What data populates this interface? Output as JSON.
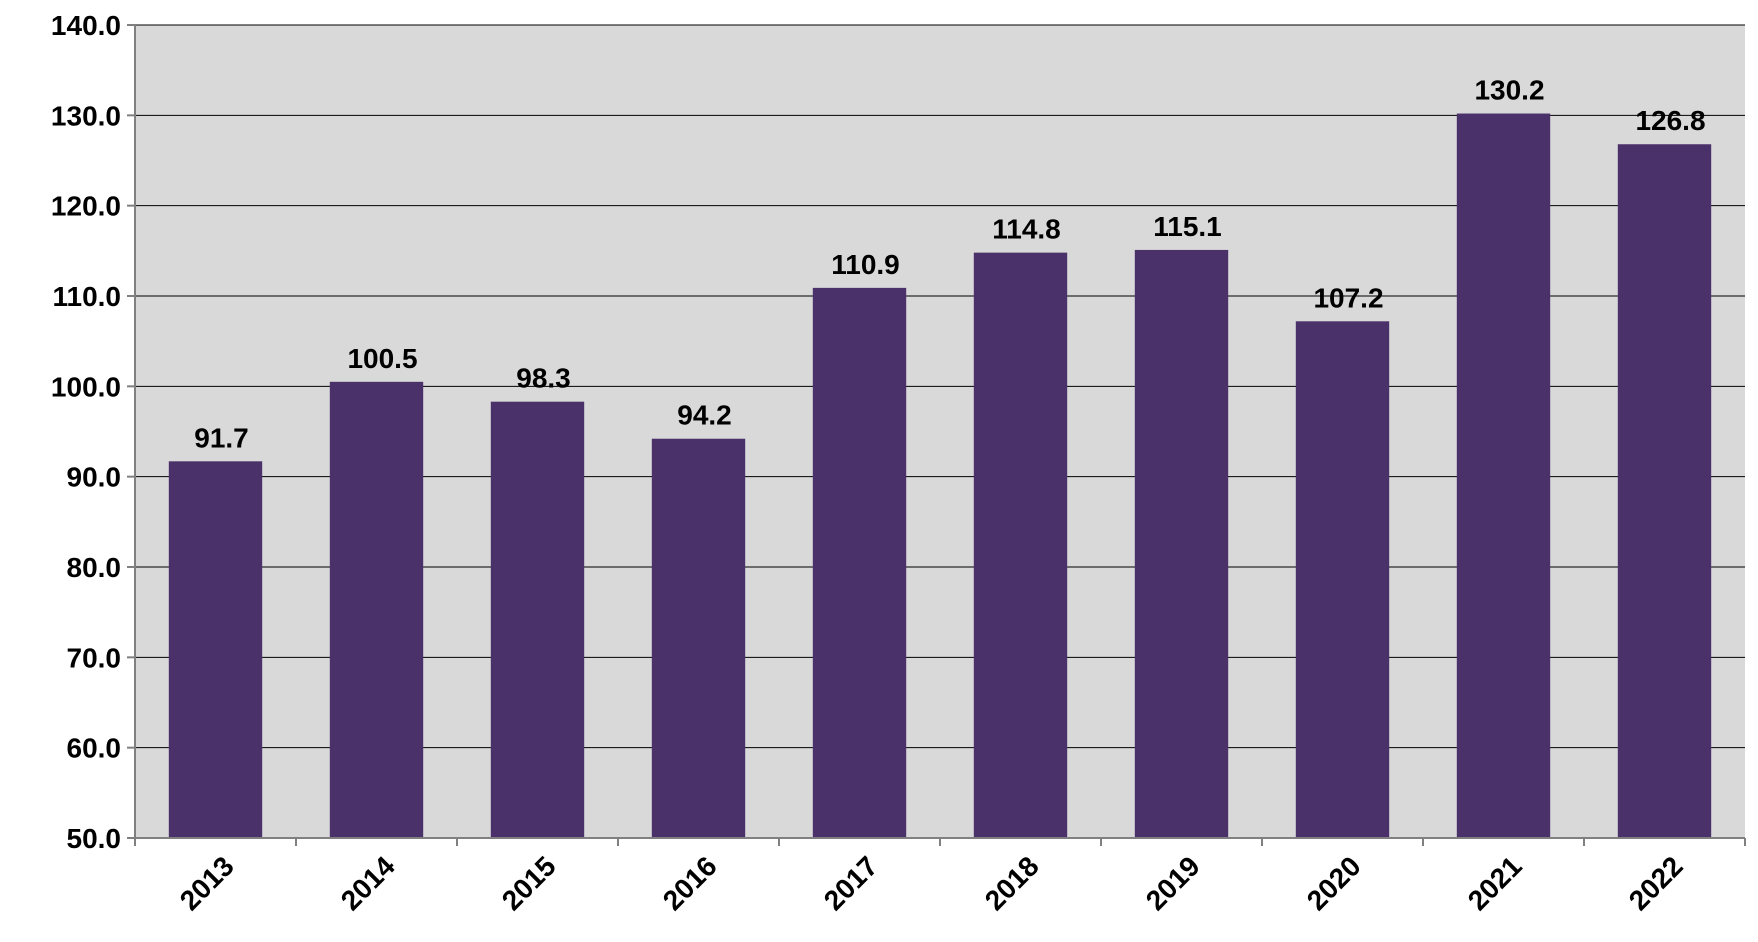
{
  "chart_data": {
    "type": "bar",
    "title": "",
    "xlabel": "",
    "ylabel": "",
    "categories": [
      "2013",
      "2014",
      "2015",
      "2016",
      "2017",
      "2018",
      "2019",
      "2020",
      "2021",
      "2022"
    ],
    "values": [
      91.7,
      100.5,
      98.3,
      94.2,
      110.9,
      114.8,
      115.1,
      107.2,
      130.2,
      126.8
    ],
    "value_labels": [
      "91.7",
      "100.5",
      "98.3",
      "94.2",
      "110.9",
      "114.8",
      "115.1",
      "107.2",
      "130.2",
      "126.8"
    ],
    "ylim": [
      50,
      140
    ],
    "yticks": [
      50,
      60,
      70,
      80,
      90,
      100,
      110,
      120,
      130,
      140
    ],
    "ytick_labels": [
      "50.0",
      "60.0",
      "70.0",
      "80.0",
      "90.0",
      "100.0",
      "110.0",
      "120.0",
      "130.0",
      "140.0"
    ],
    "grid": true,
    "legend": "none",
    "colors": {
      "bar": "#4b3169",
      "plot_background": "#d9d9d9",
      "gridline": "#000000",
      "axis": "#808080"
    }
  }
}
